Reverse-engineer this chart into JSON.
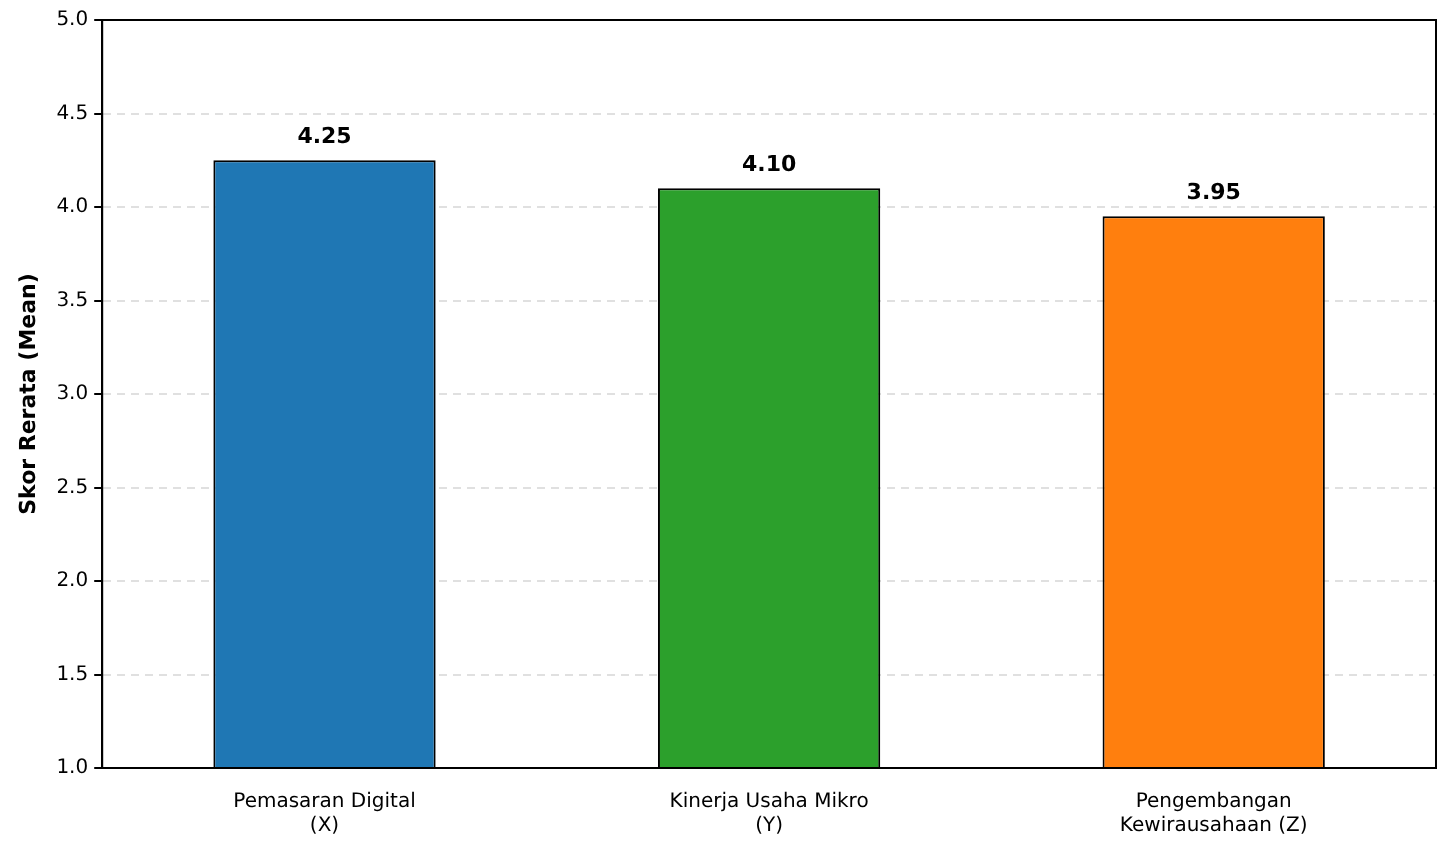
{
  "chart_data": {
    "type": "bar",
    "ylabel": "Skor Rerata (Mean)",
    "categories": [
      "Pemasaran Digital (X)",
      "Kinerja Usaha Mikro (Y)",
      "Pengembangan Kewirausahaan (Z)"
    ],
    "values": [
      4.25,
      4.1,
      3.95
    ],
    "colors": [
      "#1f77b4",
      "#2ca02c",
      "#ff7f0e"
    ],
    "value_labels": [
      "4.25",
      "4.10",
      "3.95"
    ],
    "ylim": [
      1,
      5
    ],
    "yticks": [
      {
        "value": 1,
        "label": "1.0"
      },
      {
        "value": 1.5,
        "label": "1.5"
      },
      {
        "value": 2,
        "label": "2.0"
      },
      {
        "value": 2.5,
        "label": "2.5"
      },
      {
        "value": 3,
        "label": "3.0"
      },
      {
        "value": 3.5,
        "label": "3.5"
      },
      {
        "value": 4,
        "label": "4.0"
      },
      {
        "value": 4.5,
        "label": "4.5"
      },
      {
        "value": 5,
        "label": "5.0"
      }
    ],
    "grid": "y",
    "legend": false
  }
}
